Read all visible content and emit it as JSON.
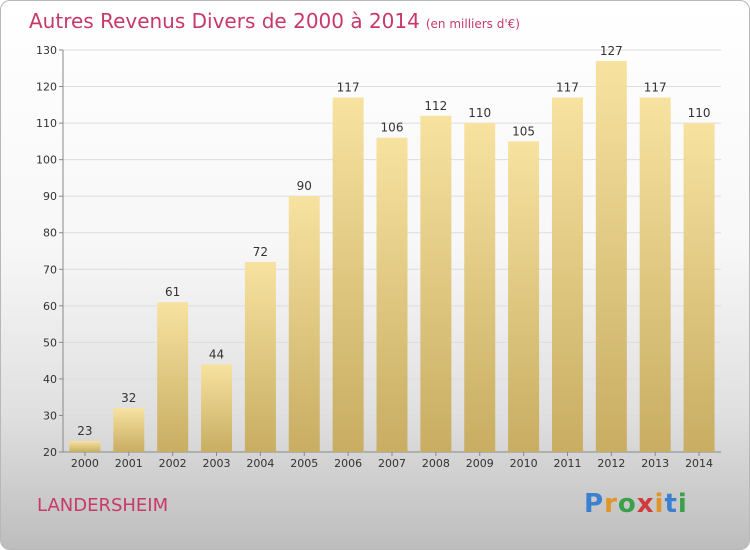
{
  "title": "Autres Revenus Divers de 2000 à 2014",
  "subtitle": "(en milliers d'€)",
  "location": "LANDERSHEIM",
  "logo": {
    "letters": [
      "P",
      "r",
      "o",
      "x",
      "i",
      "t",
      "i"
    ],
    "colors": [
      "#3a7fd0",
      "#e0952a",
      "#3aa04a",
      "#d03a3a",
      "#e0952a",
      "#3a7fd0",
      "#3aa04a"
    ]
  },
  "colors": {
    "bar_top": "#f7e2a0",
    "bar_bottom": "#c8ad62",
    "grid": "#dddddd",
    "text": "#333333",
    "accent": "#c8386a"
  },
  "chart_data": {
    "type": "bar",
    "categories": [
      "2000",
      "2001",
      "2002",
      "2003",
      "2004",
      "2005",
      "2006",
      "2007",
      "2008",
      "2009",
      "2010",
      "2011",
      "2012",
      "2013",
      "2014"
    ],
    "values": [
      23,
      32,
      61,
      44,
      72,
      90,
      117,
      106,
      112,
      110,
      105,
      117,
      127,
      117,
      110
    ],
    "yticks": [
      20,
      30,
      40,
      50,
      60,
      70,
      80,
      90,
      100,
      110,
      120,
      130
    ],
    "ylim": [
      20,
      130
    ],
    "grid": true
  }
}
